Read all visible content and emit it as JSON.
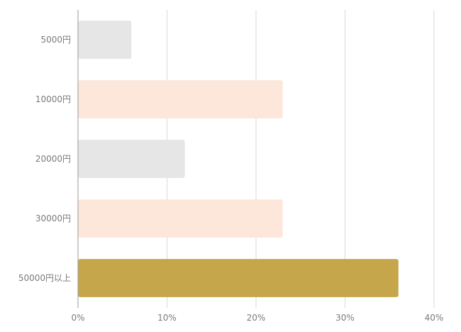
{
  "chart_data": {
    "type": "bar",
    "orientation": "horizontal",
    "categories": [
      "5000円",
      "10000円",
      "20000円",
      "30000円",
      "50000円以上"
    ],
    "values": [
      6,
      23,
      12,
      23,
      36
    ],
    "unit": "%",
    "xlim": [
      0,
      40
    ],
    "xticks": [
      "0%",
      "10%",
      "20%",
      "30%",
      "40%"
    ],
    "grid": true,
    "title": "",
    "xlabel": "",
    "ylabel": "",
    "colors": [
      "#e6e6e6",
      "#fde6da",
      "#e6e6e6",
      "#fde6da",
      "#c6a64b"
    ]
  }
}
